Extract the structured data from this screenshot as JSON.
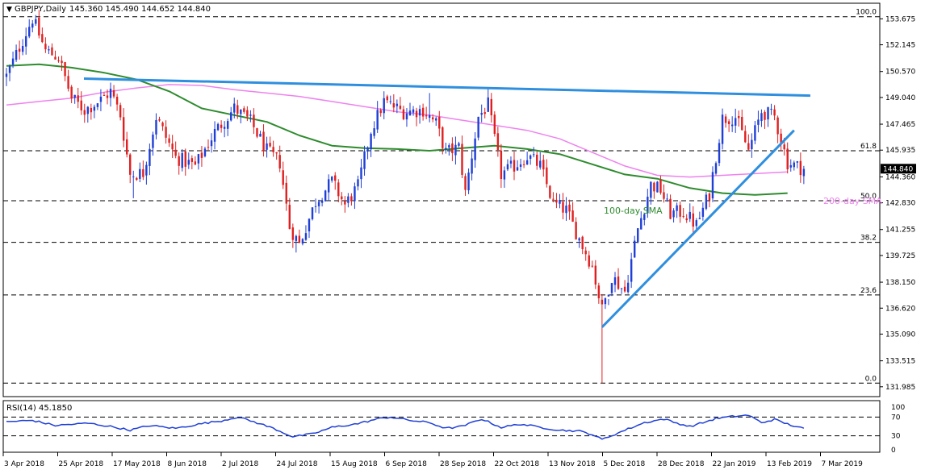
{
  "chart_data": [
    {
      "type": "candlestick",
      "symbol_label": "GBPJPY,Daily",
      "ohlc_label": "145.360 145.490 144.652 144.840",
      "current_price": 144.84,
      "current_price_label": "144.840",
      "ylim": [
        131.5,
        154.5
      ],
      "y_ticks": [
        "153.675",
        "152.145",
        "150.570",
        "149.040",
        "147.465",
        "145.935",
        "144.360",
        "142.830",
        "141.255",
        "139.725",
        "138.150",
        "136.620",
        "135.090",
        "133.515",
        "131.985"
      ],
      "x_ticks": [
        "3 Apr 2018",
        "25 Apr 2018",
        "17 May 2018",
        "8 Jun 2018",
        "2 Jul 2018",
        "24 Jul 2018",
        "15 Aug 2018",
        "6 Sep 2018",
        "28 Sep 2018",
        "22 Oct 2018",
        "13 Nov 2018",
        "5 Dec 2018",
        "28 Dec 2018",
        "22 Jan 2019",
        "13 Feb 2019",
        "7 Mar 2019"
      ],
      "colors": {
        "bull": "#1f3fd6",
        "bear": "#e02020",
        "sma100": "#2e8b2e",
        "sma200": "#ee82ee",
        "trendline": "#2f8fdf",
        "fib": "#000000"
      },
      "fibonacci": [
        {
          "label": "100.0",
          "price": 153.8
        },
        {
          "label": "61.8",
          "price": 145.9
        },
        {
          "label": "50.0",
          "price": 142.95
        },
        {
          "label": "38.2",
          "price": 140.5
        },
        {
          "label": "23.6",
          "price": 137.4
        },
        {
          "label": "0.0",
          "price": 132.2
        }
      ],
      "annotations": {
        "sma100": "100-day SMA",
        "sma200": "200-day SMA"
      },
      "trendlines": [
        {
          "name": "resistance",
          "points": [
            [
              0,
              150.15
            ],
            [
              247,
              149.15
            ]
          ]
        },
        {
          "name": "support",
          "points": [
            [
              183,
              135.5
            ],
            [
              242,
              147.1
            ]
          ]
        }
      ],
      "sma100": [
        [
          0,
          150.9
        ],
        [
          10,
          151.0
        ],
        [
          20,
          150.8
        ],
        [
          30,
          150.5
        ],
        [
          40,
          150.1
        ],
        [
          50,
          149.4
        ],
        [
          60,
          148.4
        ],
        [
          70,
          148.0
        ],
        [
          80,
          147.6
        ],
        [
          90,
          146.8
        ],
        [
          100,
          146.2
        ],
        [
          110,
          146.05
        ],
        [
          120,
          146.0
        ],
        [
          130,
          145.9
        ],
        [
          140,
          146.05
        ],
        [
          150,
          146.2
        ],
        [
          160,
          146.0
        ],
        [
          170,
          145.7
        ],
        [
          180,
          145.1
        ],
        [
          190,
          144.5
        ],
        [
          200,
          144.25
        ],
        [
          210,
          143.7
        ],
        [
          220,
          143.4
        ],
        [
          230,
          143.3
        ],
        [
          240,
          143.4
        ]
      ],
      "sma200": [
        [
          0,
          148.6
        ],
        [
          10,
          148.8
        ],
        [
          20,
          149.0
        ],
        [
          30,
          149.35
        ],
        [
          40,
          149.6
        ],
        [
          50,
          149.8
        ],
        [
          60,
          149.75
        ],
        [
          70,
          149.5
        ],
        [
          80,
          149.3
        ],
        [
          90,
          149.1
        ],
        [
          100,
          148.8
        ],
        [
          110,
          148.5
        ],
        [
          120,
          148.2
        ],
        [
          130,
          148.0
        ],
        [
          140,
          147.7
        ],
        [
          150,
          147.4
        ],
        [
          160,
          147.1
        ],
        [
          170,
          146.6
        ],
        [
          180,
          145.8
        ],
        [
          190,
          145.0
        ],
        [
          200,
          144.45
        ],
        [
          210,
          144.35
        ],
        [
          220,
          144.45
        ],
        [
          230,
          144.55
        ],
        [
          240,
          144.65
        ]
      ],
      "price_path": [
        [
          0,
          150.3
        ],
        [
          8,
          153.7
        ],
        [
          12,
          151.8
        ],
        [
          16,
          151.4
        ],
        [
          20,
          149.0
        ],
        [
          24,
          148.3
        ],
        [
          29,
          148.9
        ],
        [
          32,
          149.4
        ],
        [
          35,
          148.0
        ],
        [
          38,
          144.5
        ],
        [
          42,
          144.6
        ],
        [
          46,
          147.9
        ],
        [
          52,
          145.5
        ],
        [
          58,
          145.0
        ],
        [
          64,
          147.0
        ],
        [
          70,
          148.4
        ],
        [
          75,
          147.6
        ],
        [
          80,
          145.9
        ],
        [
          84,
          145.2
        ],
        [
          87,
          141.4
        ],
        [
          90,
          140.4
        ],
        [
          95,
          142.9
        ],
        [
          100,
          144.1
        ],
        [
          104,
          142.7
        ],
        [
          108,
          143.8
        ],
        [
          112,
          147.1
        ],
        [
          116,
          148.8
        ],
        [
          122,
          148.2
        ],
        [
          128,
          148.3
        ],
        [
          132,
          147.5
        ],
        [
          135,
          145.8
        ],
        [
          139,
          146.1
        ],
        [
          141,
          143.4
        ],
        [
          145,
          147.9
        ],
        [
          148,
          148.6
        ],
        [
          152,
          144.5
        ],
        [
          156,
          145.0
        ],
        [
          160,
          145.6
        ],
        [
          164,
          145.0
        ],
        [
          168,
          142.8
        ],
        [
          172,
          142.4
        ],
        [
          176,
          140.7
        ],
        [
          180,
          139.1
        ],
        [
          183,
          136.5
        ],
        [
          186,
          138.5
        ],
        [
          190,
          137.6
        ],
        [
          194,
          141.3
        ],
        [
          198,
          143.9
        ],
        [
          201,
          143.6
        ],
        [
          204,
          142.2
        ],
        [
          208,
          142.3
        ],
        [
          212,
          141.5
        ],
        [
          216,
          143.4
        ],
        [
          220,
          147.8
        ],
        [
          224,
          147.9
        ],
        [
          228,
          145.9
        ],
        [
          232,
          148.2
        ],
        [
          236,
          147.9
        ],
        [
          240,
          145.2
        ],
        [
          245,
          144.84
        ]
      ],
      "wick_highs": [
        [
          9,
          153.9
        ],
        [
          185,
          136.8
        ],
        [
          117,
          149.2
        ],
        [
          130,
          149.3
        ]
      ],
      "wick_lows": [
        [
          183,
          132.2
        ],
        [
          89,
          139.9
        ],
        [
          39,
          143.1
        ]
      ],
      "total_bars": 250
    },
    {
      "type": "line",
      "indicator_label": "RSI(14) 45.1850",
      "ylim": [
        0,
        100
      ],
      "y_ticks": [
        "100",
        "70",
        "30",
        "0"
      ],
      "levels": [
        70,
        30
      ],
      "colors": {
        "line": "#1f3fd6"
      },
      "series": [
        [
          0,
          60
        ],
        [
          8,
          63
        ],
        [
          15,
          52
        ],
        [
          25,
          57
        ],
        [
          32,
          50
        ],
        [
          38,
          42
        ],
        [
          44,
          52
        ],
        [
          52,
          46
        ],
        [
          60,
          56
        ],
        [
          66,
          62
        ],
        [
          71,
          70
        ],
        [
          76,
          60
        ],
        [
          82,
          46
        ],
        [
          88,
          28
        ],
        [
          94,
          34
        ],
        [
          100,
          48
        ],
        [
          108,
          56
        ],
        [
          114,
          66
        ],
        [
          118,
          70
        ],
        [
          124,
          63
        ],
        [
          130,
          58
        ],
        [
          135,
          46
        ],
        [
          140,
          50
        ],
        [
          146,
          66
        ],
        [
          152,
          48
        ],
        [
          158,
          55
        ],
        [
          165,
          47
        ],
        [
          170,
          42
        ],
        [
          176,
          40
        ],
        [
          180,
          33
        ],
        [
          183,
          22
        ],
        [
          190,
          42
        ],
        [
          196,
          58
        ],
        [
          202,
          66
        ],
        [
          206,
          57
        ],
        [
          210,
          50
        ],
        [
          214,
          58
        ],
        [
          218,
          67
        ],
        [
          224,
          72
        ],
        [
          228,
          74
        ],
        [
          232,
          58
        ],
        [
          236,
          65
        ],
        [
          240,
          55
        ],
        [
          245,
          45.185
        ]
      ]
    }
  ]
}
